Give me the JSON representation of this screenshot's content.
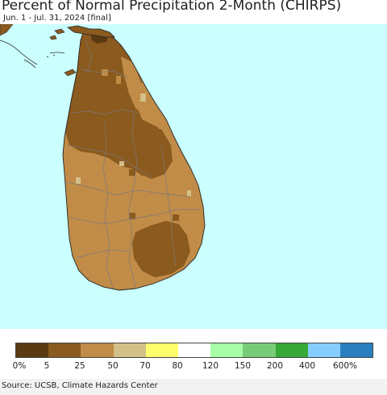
{
  "header": {
    "title": "Percent of Normal Precipitation 2-Month (CHIRPS)",
    "subtitle": "Jun. 1 - Jul. 31, 2024 [final]"
  },
  "map": {
    "ocean_color": "#cbfefe",
    "land_outside_color": "#8b5a1e",
    "boundary_color": "#7a7a7a"
  },
  "legend": {
    "colors": [
      "#5a3a12",
      "#8b5a1e",
      "#c18c48",
      "#d3bf88",
      "#fefe6c",
      "#ffffff",
      "#a6fea6",
      "#78cc78",
      "#36a836",
      "#84cdfe",
      "#2a80be"
    ],
    "labels": [
      "0%",
      "5",
      "25",
      "50",
      "70",
      "80",
      "120",
      "150",
      "200",
      "400",
      "600%"
    ]
  },
  "footer": {
    "source": "Source: UCSB, Climate Hazards Center"
  }
}
